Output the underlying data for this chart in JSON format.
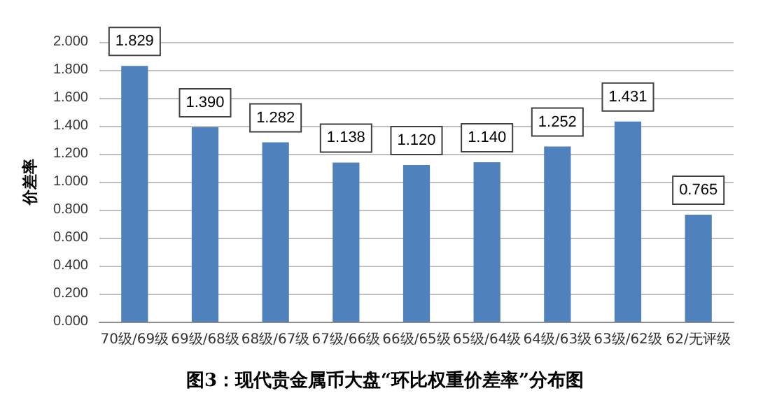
{
  "chart_data": {
    "type": "bar",
    "title": "图3：现代贵金属币大盘“环比权重价差率”分布图",
    "ylabel": "价差率",
    "categories": [
      "70级/69级",
      "69级/68级",
      "68级/67级",
      "67级/66级",
      "66级/65级",
      "65级/64级",
      "64级/63级",
      "63级/62级",
      "62/无评级"
    ],
    "values": [
      1.829,
      1.39,
      1.282,
      1.138,
      1.12,
      1.14,
      1.252,
      1.431,
      0.765
    ],
    "value_labels": [
      "1.829",
      "1.390",
      "1.282",
      "1.138",
      "1.120",
      "1.140",
      "1.252",
      "1.431",
      "0.765"
    ],
    "color": "#4f81bd",
    "ylim": [
      0,
      2
    ],
    "yticks": [
      {
        "value": 0,
        "label": "0.000"
      },
      {
        "value": 0.2,
        "label": "0.200"
      },
      {
        "value": 0.4,
        "label": "0.400"
      },
      {
        "value": 0.6,
        "label": "0.600"
      },
      {
        "value": 0.8,
        "label": "0.800"
      },
      {
        "value": 1,
        "label": "1.000"
      },
      {
        "value": 1.2,
        "label": "1.200"
      },
      {
        "value": 1.4,
        "label": "1.400"
      },
      {
        "value": 1.6,
        "label": "1.600"
      },
      {
        "value": 1.8,
        "label": "1.800"
      },
      {
        "value": 2,
        "label": "2.000"
      }
    ],
    "grid": true
  }
}
